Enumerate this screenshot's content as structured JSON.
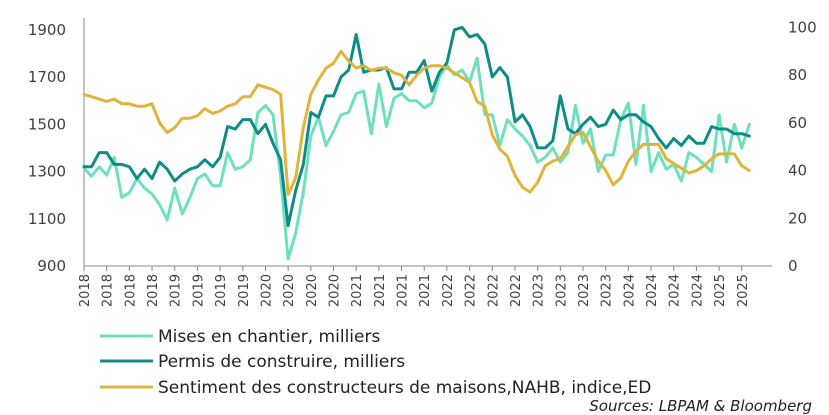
{
  "chart_data": {
    "type": "line",
    "title": "",
    "x_tick_labels": [
      "2018",
      "2018",
      "2018",
      "2018",
      "2019",
      "2019",
      "2019",
      "2019",
      "2020",
      "2020",
      "2020",
      "2020",
      "2021",
      "2021",
      "2021",
      "2021",
      "2022",
      "2022",
      "2022",
      "2022",
      "2023",
      "2023",
      "2023",
      "2023",
      "2024",
      "2024",
      "2024",
      "2024",
      "2025",
      "2025"
    ],
    "y_left": {
      "ticks": [
        900,
        1100,
        1300,
        1500,
        1700,
        1900
      ],
      "range": [
        900,
        1950
      ]
    },
    "y_right": {
      "ticks": [
        0,
        20,
        40,
        60,
        80,
        100
      ],
      "range": [
        0,
        104
      ]
    },
    "x_range": [
      2018.0,
      2025.583
    ],
    "series": [
      {
        "name": "Mises en chantier, milliers",
        "axis": "left",
        "color": "#6ee0bd",
        "x": [
          2018.0,
          2018.083,
          2018.167,
          2018.25,
          2018.333,
          2018.417,
          2018.5,
          2018.583,
          2018.667,
          2018.75,
          2018.833,
          2018.917,
          2019.0,
          2019.083,
          2019.167,
          2019.25,
          2019.333,
          2019.417,
          2019.5,
          2019.583,
          2019.667,
          2019.75,
          2019.833,
          2019.917,
          2020.0,
          2020.083,
          2020.167,
          2020.25,
          2020.333,
          2020.417,
          2020.5,
          2020.583,
          2020.667,
          2020.75,
          2020.833,
          2020.917,
          2021.0,
          2021.083,
          2021.167,
          2021.25,
          2021.333,
          2021.417,
          2021.5,
          2021.583,
          2021.667,
          2021.75,
          2021.833,
          2021.917,
          2022.0,
          2022.083,
          2022.167,
          2022.25,
          2022.333,
          2022.417,
          2022.5,
          2022.583,
          2022.667,
          2022.75,
          2022.833,
          2022.917,
          2023.0,
          2023.083,
          2023.167,
          2023.25,
          2023.333,
          2023.417,
          2023.5,
          2023.583,
          2023.667,
          2023.75,
          2023.833,
          2023.917,
          2024.0,
          2024.083,
          2024.167,
          2024.25,
          2024.333,
          2024.417,
          2024.5,
          2024.583,
          2024.667,
          2024.75,
          2024.833,
          2024.917,
          2025.0,
          2025.083,
          2025.167,
          2025.25,
          2025.333
        ],
        "values": [
          1315,
          1280,
          1320,
          1285,
          1360,
          1190,
          1210,
          1270,
          1230,
          1205,
          1160,
          1095,
          1230,
          1120,
          1190,
          1270,
          1290,
          1240,
          1240,
          1380,
          1310,
          1320,
          1350,
          1550,
          1580,
          1540,
          1280,
          930,
          1040,
          1210,
          1450,
          1530,
          1410,
          1470,
          1540,
          1550,
          1630,
          1640,
          1460,
          1670,
          1490,
          1610,
          1630,
          1600,
          1600,
          1570,
          1590,
          1700,
          1750,
          1710,
          1730,
          1680,
          1780,
          1540,
          1540,
          1410,
          1520,
          1480,
          1450,
          1410,
          1340,
          1360,
          1400,
          1340,
          1380,
          1580,
          1420,
          1480,
          1300,
          1370,
          1370,
          1520,
          1590,
          1330,
          1580,
          1300,
          1380,
          1310,
          1330,
          1260,
          1380,
          1360,
          1330,
          1300,
          1540,
          1340,
          1500,
          1400,
          1500
        ]
      },
      {
        "name": "Permis de construire, milliers",
        "axis": "left",
        "color": "#0f8c8a",
        "x": [
          2018.0,
          2018.083,
          2018.167,
          2018.25,
          2018.333,
          2018.417,
          2018.5,
          2018.583,
          2018.667,
          2018.75,
          2018.833,
          2018.917,
          2019.0,
          2019.083,
          2019.167,
          2019.25,
          2019.333,
          2019.417,
          2019.5,
          2019.583,
          2019.667,
          2019.75,
          2019.833,
          2019.917,
          2020.0,
          2020.083,
          2020.167,
          2020.25,
          2020.333,
          2020.417,
          2020.5,
          2020.583,
          2020.667,
          2020.75,
          2020.833,
          2020.917,
          2021.0,
          2021.083,
          2021.167,
          2021.25,
          2021.333,
          2021.417,
          2021.5,
          2021.583,
          2021.667,
          2021.75,
          2021.833,
          2021.917,
          2022.0,
          2022.083,
          2022.167,
          2022.25,
          2022.333,
          2022.417,
          2022.5,
          2022.583,
          2022.667,
          2022.75,
          2022.833,
          2022.917,
          2023.0,
          2023.083,
          2023.167,
          2023.25,
          2023.333,
          2023.417,
          2023.5,
          2023.583,
          2023.667,
          2023.75,
          2023.833,
          2023.917,
          2024.0,
          2024.083,
          2024.167,
          2024.25,
          2024.333,
          2024.417,
          2024.5,
          2024.583,
          2024.667,
          2024.75,
          2024.833,
          2024.917,
          2025.0,
          2025.083,
          2025.167,
          2025.25,
          2025.333
        ],
        "values": [
          1320,
          1320,
          1380,
          1380,
          1330,
          1330,
          1320,
          1270,
          1310,
          1270,
          1340,
          1310,
          1260,
          1290,
          1310,
          1320,
          1350,
          1320,
          1360,
          1490,
          1480,
          1520,
          1520,
          1460,
          1500,
          1420,
          1350,
          1070,
          1220,
          1330,
          1550,
          1530,
          1620,
          1620,
          1700,
          1730,
          1880,
          1720,
          1730,
          1730,
          1740,
          1650,
          1650,
          1720,
          1720,
          1770,
          1640,
          1720,
          1760,
          1900,
          1910,
          1870,
          1880,
          1840,
          1700,
          1740,
          1700,
          1510,
          1540,
          1490,
          1400,
          1400,
          1430,
          1620,
          1480,
          1460,
          1500,
          1530,
          1490,
          1500,
          1560,
          1520,
          1540,
          1540,
          1510,
          1490,
          1440,
          1400,
          1440,
          1410,
          1450,
          1420,
          1420,
          1490,
          1480,
          1480,
          1460,
          1460,
          1450
        ]
      },
      {
        "name": "Sentiment des constructeurs de maisons,NAHB, indice,ED",
        "axis": "right",
        "color": "#e0b33a",
        "x": [
          2018.0,
          2018.083,
          2018.167,
          2018.25,
          2018.333,
          2018.417,
          2018.5,
          2018.583,
          2018.667,
          2018.75,
          2018.833,
          2018.917,
          2019.0,
          2019.083,
          2019.167,
          2019.25,
          2019.333,
          2019.417,
          2019.5,
          2019.583,
          2019.667,
          2019.75,
          2019.833,
          2019.917,
          2020.0,
          2020.083,
          2020.167,
          2020.25,
          2020.333,
          2020.417,
          2020.5,
          2020.583,
          2020.667,
          2020.75,
          2020.833,
          2020.917,
          2021.0,
          2021.083,
          2021.167,
          2021.25,
          2021.333,
          2021.417,
          2021.5,
          2021.583,
          2021.667,
          2021.75,
          2021.833,
          2021.917,
          2022.0,
          2022.083,
          2022.167,
          2022.25,
          2022.333,
          2022.417,
          2022.5,
          2022.583,
          2022.667,
          2022.75,
          2022.833,
          2022.917,
          2023.0,
          2023.083,
          2023.167,
          2023.25,
          2023.333,
          2023.417,
          2023.5,
          2023.583,
          2023.667,
          2023.75,
          2023.833,
          2023.917,
          2024.0,
          2024.083,
          2024.167,
          2024.25,
          2024.333,
          2024.417,
          2024.5,
          2024.583,
          2024.667,
          2024.75,
          2024.833,
          2024.917,
          2025.0,
          2025.083,
          2025.167,
          2025.25,
          2025.333
        ],
        "values": [
          72,
          71,
          70,
          69,
          70,
          68,
          68,
          67,
          67,
          68,
          60,
          56,
          58,
          62,
          62,
          63,
          66,
          64,
          65,
          67,
          68,
          71,
          71,
          76,
          75,
          74,
          72,
          30,
          37,
          58,
          72,
          78,
          83,
          85,
          90,
          86,
          83,
          84,
          82,
          83,
          83,
          81,
          80,
          76,
          80,
          83,
          84,
          84,
          83,
          81,
          79,
          77,
          69,
          67,
          55,
          49,
          46,
          38,
          33,
          31,
          35,
          42,
          44,
          45,
          50,
          55,
          56,
          50,
          44,
          40,
          34,
          37,
          44,
          48,
          51,
          51,
          51,
          45,
          43,
          41,
          39,
          40,
          42,
          45,
          47,
          47,
          47,
          42,
          40
        ]
      }
    ],
    "legend_position": "bottom-left",
    "grid": false
  },
  "source": "Sources: LBPAM & Bloomberg"
}
